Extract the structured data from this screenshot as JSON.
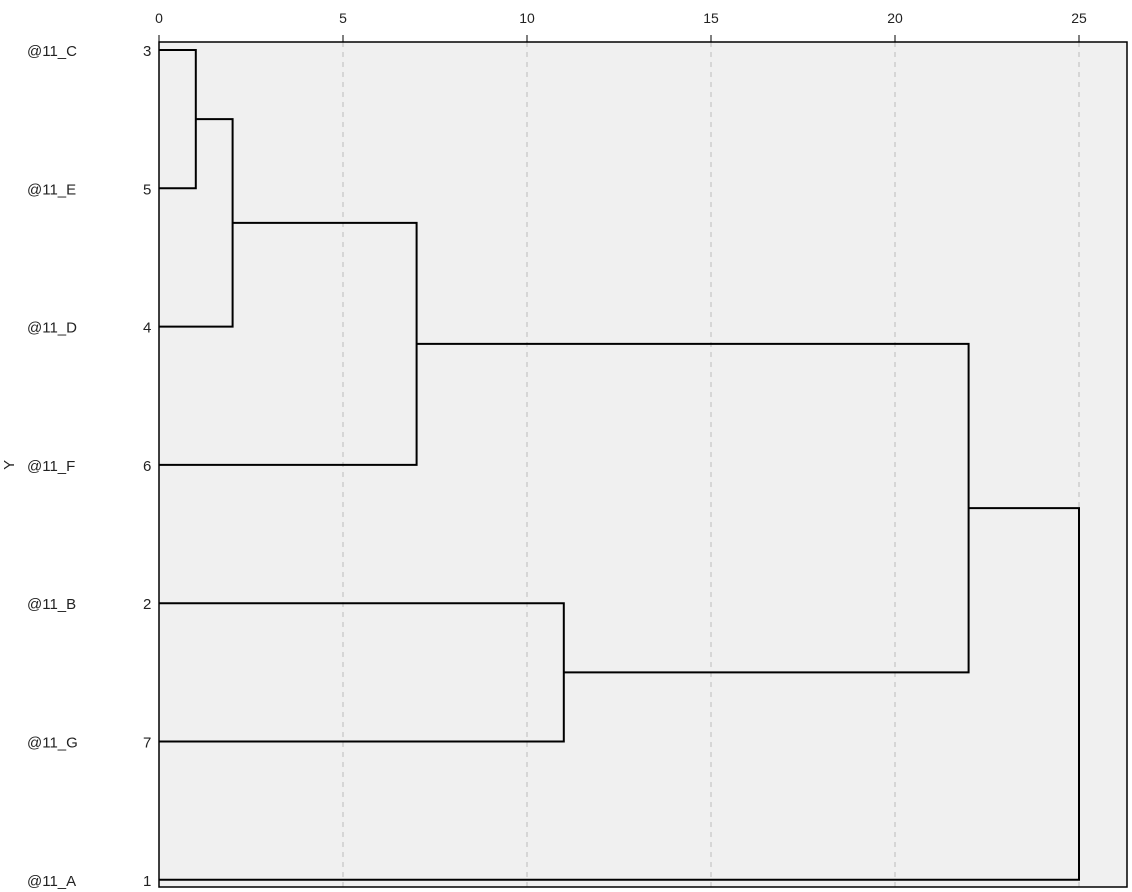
{
  "chart_data": {
    "type": "dendrogram",
    "title": "",
    "xlabel": "",
    "ylabel": "Y",
    "xlim": [
      0,
      26
    ],
    "x_ticks": [
      0,
      5,
      10,
      15,
      20,
      25
    ],
    "grid": "vertical dashed",
    "leaves": [
      {
        "label": "@11_C",
        "case": "3"
      },
      {
        "label": "@11_E",
        "case": "5"
      },
      {
        "label": "@11_D",
        "case": "4"
      },
      {
        "label": "@11_F",
        "case": "6"
      },
      {
        "label": "@11_B",
        "case": "2"
      },
      {
        "label": "@11_G",
        "case": "7"
      },
      {
        "label": "@11_A",
        "case": "1"
      }
    ],
    "merges": [
      {
        "left": "@11_C",
        "right": "@11_E",
        "distance": 1
      },
      {
        "left": "cluster(@11_C,@11_E)",
        "right": "@11_D",
        "distance": 2
      },
      {
        "left": "cluster(@11_C,@11_E,@11_D)",
        "right": "@11_F",
        "distance": 7
      },
      {
        "left": "@11_B",
        "right": "@11_G",
        "distance": 11
      },
      {
        "left": "cluster(@11_C,@11_E,@11_D,@11_F)",
        "right": "cluster(@11_B,@11_G)",
        "distance": 22
      },
      {
        "left": "cluster(@11_C,@11_E,@11_D,@11_F,@11_B,@11_G)",
        "right": "@11_A",
        "distance": 25
      }
    ],
    "colors": {
      "plot_background": "#f0f0f0",
      "line": "#000000",
      "grid": "#bdbdbd"
    }
  }
}
